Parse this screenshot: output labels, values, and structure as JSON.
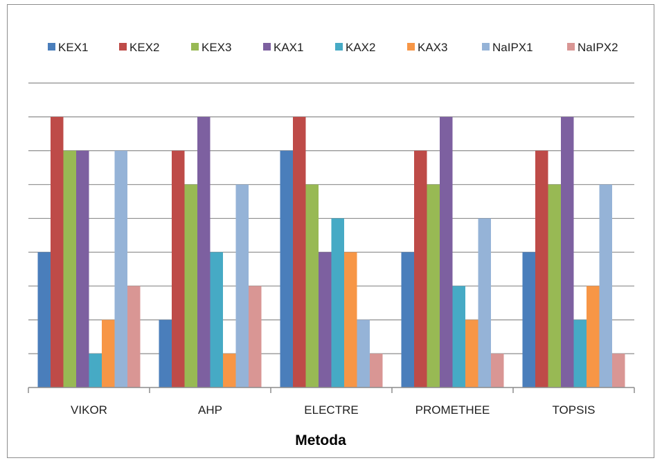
{
  "chart_data": {
    "type": "bar",
    "title": "",
    "xlabel": "Metoda",
    "ylabel": "",
    "categories": [
      "VIKOR",
      "AHP",
      "ELECTRE",
      "PROMETHEE",
      "TOPSIS"
    ],
    "series": [
      {
        "name": "KEX1",
        "color": "#4a7ebb",
        "values": [
          4,
          2,
          7,
          4,
          4
        ]
      },
      {
        "name": "KEX2",
        "color": "#be4b48",
        "values": [
          8,
          7,
          8,
          7,
          7
        ]
      },
      {
        "name": "KEX3",
        "color": "#98b954",
        "values": [
          7,
          6,
          6,
          6,
          6
        ]
      },
      {
        "name": "KAX1",
        "color": "#7d60a0",
        "values": [
          7,
          8,
          4,
          8,
          8
        ]
      },
      {
        "name": "KAX2",
        "color": "#46aac5",
        "values": [
          1,
          4,
          5,
          3,
          2
        ]
      },
      {
        "name": "KAX3",
        "color": "#f79646",
        "values": [
          2,
          1,
          4,
          2,
          3
        ]
      },
      {
        "name": "NaIPX1",
        "color": "#95b3d7",
        "values": [
          7,
          6,
          2,
          5,
          6
        ]
      },
      {
        "name": "NaIPX2",
        "color": "#d99694",
        "values": [
          3,
          3,
          1,
          1,
          1
        ]
      }
    ],
    "ylim": [
      0,
      9
    ],
    "y_tick_labels_shown": false,
    "grid": true,
    "legend": "top"
  }
}
